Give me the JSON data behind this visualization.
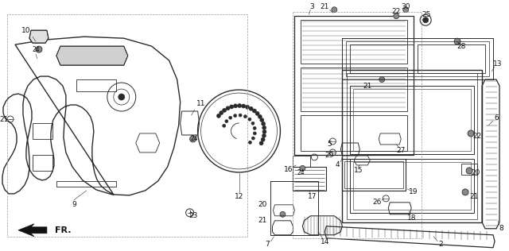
{
  "bg_color": "#ffffff",
  "fig_width": 6.4,
  "fig_height": 3.16,
  "dpi": 100,
  "line_color": "#2a2a2a",
  "text_color": "#111111",
  "label_fontsize": 6.5,
  "border_color": "#999999"
}
